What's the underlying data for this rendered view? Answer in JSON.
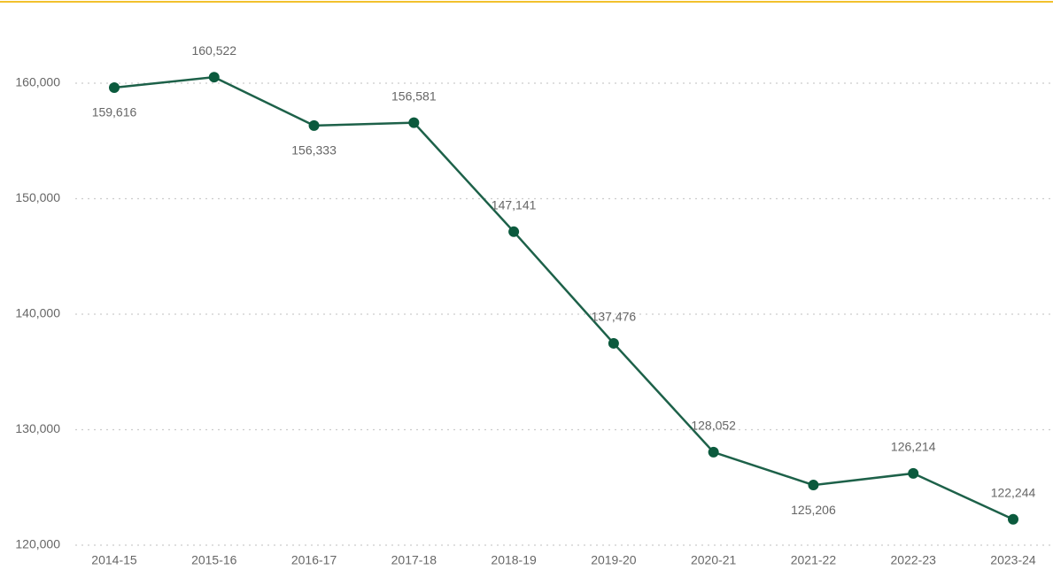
{
  "chart_data": {
    "type": "line",
    "categories": [
      "2014-15",
      "2015-16",
      "2016-17",
      "2017-18",
      "2018-19",
      "2019-20",
      "2020-21",
      "2021-22",
      "2022-23",
      "2023-24"
    ],
    "series": [
      {
        "color": "#1d6149",
        "values": [
          159616,
          160522,
          156333,
          156581,
          147141,
          137476,
          128052,
          125206,
          126214,
          122244
        ],
        "value_labels": [
          "159,616",
          "160,522",
          "156,333",
          "156,581",
          "147,141",
          "137,476",
          "128,052",
          "125,206",
          "126,214",
          "122,244"
        ]
      }
    ],
    "ylim": [
      120000,
      160000
    ],
    "yticks": [
      {
        "value": 120000,
        "label": "120,000"
      },
      {
        "value": 130000,
        "label": "130,000"
      },
      {
        "value": 140000,
        "label": "140,000"
      },
      {
        "value": 150000,
        "label": "150,000"
      },
      {
        "value": 160000,
        "label": "160,000"
      }
    ],
    "grid": true
  }
}
